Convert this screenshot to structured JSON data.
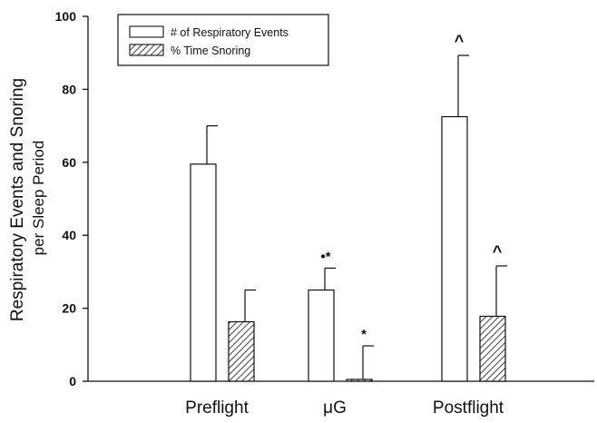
{
  "chart_data": {
    "type": "bar",
    "title": "",
    "xlabel": "",
    "ylabel": "Respiratory Events and Snoring",
    "ylabel_sub": "per Sleep Period",
    "ylim": [
      0,
      100
    ],
    "yticks": [
      0,
      20,
      40,
      60,
      80,
      100
    ],
    "categories": [
      "Preflight",
      "μG",
      "Postflight"
    ],
    "legend_position": "top-left",
    "grid": false,
    "series": [
      {
        "name": "# of Respiratory Events",
        "fill": "white",
        "values": [
          59.5,
          25.0,
          72.5
        ],
        "errors": [
          10.5,
          6.0,
          16.8
        ]
      },
      {
        "name": "% Time Snoring",
        "fill": "hatched",
        "values": [
          16.3,
          0.5,
          17.8
        ],
        "errors": [
          8.7,
          9.2,
          13.8
        ]
      }
    ],
    "annotations": [
      {
        "series": 0,
        "category": 1,
        "text": "•*"
      },
      {
        "series": 1,
        "category": 1,
        "text": "*"
      },
      {
        "series": 0,
        "category": 2,
        "text": "^"
      },
      {
        "series": 1,
        "category": 2,
        "text": "^"
      }
    ]
  },
  "colors": {
    "ink": "#111111",
    "background": "#ffffff"
  }
}
